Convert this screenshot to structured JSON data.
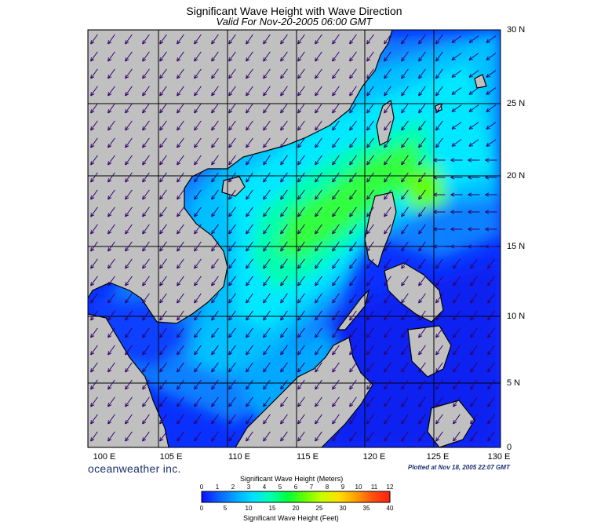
{
  "header": {
    "title": "Significant Wave Height with Wave Direction",
    "subtitle": "Valid For Nov-20-2005 06:00 GMT"
  },
  "axes": {
    "lat_labels": [
      "30 N",
      "25 N",
      "20 N",
      "15 N",
      "10 N",
      "5 N",
      "0"
    ],
    "lon_labels": [
      "100 E",
      "105 E",
      "110 E",
      "115 E",
      "120 E",
      "125 E",
      "130 E"
    ]
  },
  "branding": "oceanweather inc.",
  "plotted_at": "Plotted at Nov 18, 2005 22:07 GMT",
  "colorbar": {
    "title_top": "Significant Wave Height (Meters)",
    "title_bottom": "Significant Wave Height (Feet)",
    "meters": [
      "0",
      "1",
      "2",
      "3",
      "4",
      "5",
      "6",
      "7",
      "8",
      "9",
      "10",
      "11",
      "12"
    ],
    "feet": [
      "0",
      "5",
      "10",
      "15",
      "20",
      "25",
      "30",
      "35",
      "40"
    ],
    "colors": [
      "#0a10ff",
      "#0c60ff",
      "#00a8ff",
      "#00e0ff",
      "#00ffb4",
      "#00ff40",
      "#60ff00",
      "#c8ff00",
      "#ffe000",
      "#ffa000",
      "#ff5010",
      "#ff2010"
    ]
  },
  "map_colors": {
    "land": "#c0c0c0",
    "deep": "#1030f0",
    "mid": "#00a8ff",
    "cyan": "#00e0ff",
    "green": "#20f060",
    "bright": "#30ff10",
    "arrow": "#30006a"
  }
}
